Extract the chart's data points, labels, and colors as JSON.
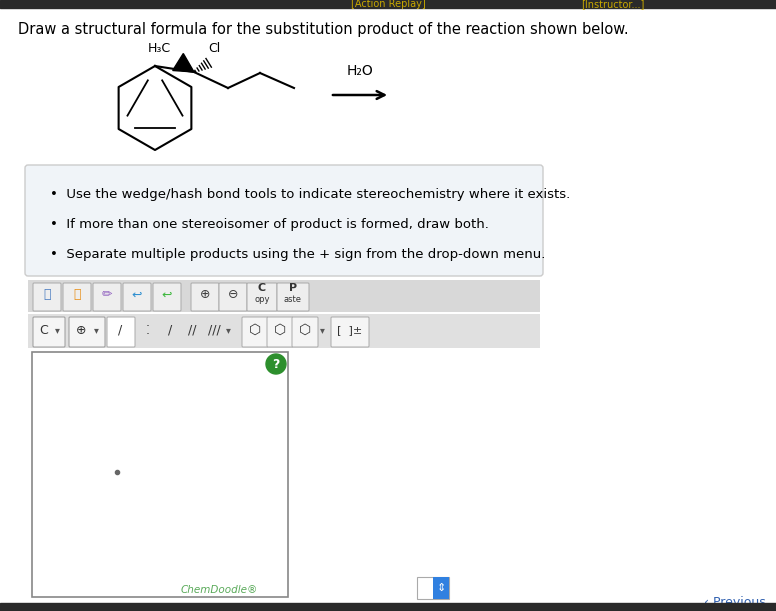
{
  "bg_color": "#ffffff",
  "top_bar_color": "#2a2a2a",
  "page_bg": "#f0f0f0",
  "title_text": "Draw a structural formula for the substitution product of the reaction shown below.",
  "title_fontsize": 10.5,
  "instruction_bullets": [
    "Use the wedge/hash bond tools to indicate stereochemistry where it exists.",
    "If more than one stereoisomer of product is formed, draw both.",
    "Separate multiple products using the + sign from the drop-down menu."
  ],
  "bullet_fontsize": 9.5,
  "arrow_label": "H₂O",
  "chemdoodle_label": "ChemDoodle®",
  "chemdoodle_label_color": "#5aaa5a",
  "question_circle_color": "#2d8f2d",
  "previous_text": "‹ Previous",
  "previous_color": "#3060b0",
  "scroll_bg": "#3080e0",
  "top_bar_gold": "#c8a800"
}
